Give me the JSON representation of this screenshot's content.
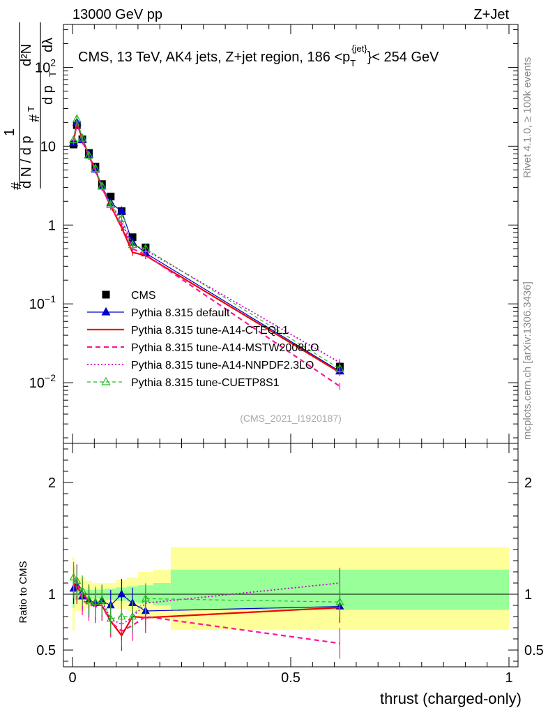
{
  "header": {
    "left": "13000 GeV pp",
    "right": "Z+Jet"
  },
  "side_text": {
    "rivet": "Rivet 4.1.0, ≥ 100k events",
    "mcplots": "mcplots.cern.ch [arXiv:1306.3436]"
  },
  "chart_data": {
    "type": "line",
    "title": "CMS, 13 TeV, AK4 jets, Z+jet region, 186 <p_T^{jet}< 254 GeV",
    "title_parts": {
      "prefix": "CMS, 13 TeV, AK4 jets, Z+jet region, 186 <p",
      "sub": "T",
      "sup": "{jet}",
      "suffix": "}< 254 GeV"
    },
    "analysis_tag": "(CMS_2021_I1920187)",
    "xlabel": "thrust (charged-only)",
    "ylabel": {
      "lead": "#",
      "one": "1",
      "dn": "d N / d p",
      "t1": "T",
      "hash2": "#",
      "dp": "d p",
      "t2": "T",
      "d2n": "d²N",
      "dl": "dλ"
    },
    "ylabel_ratio": "Ratio to CMS",
    "xlim": [
      0,
      1
    ],
    "ylim": [
      0.0017,
      350
    ],
    "yscale": "log",
    "ratio_ylim": [
      0.35,
      2.35
    ],
    "x_ticks": [
      0,
      0.5,
      1
    ],
    "x_tick_labels": [
      "0",
      "0.5",
      "1"
    ],
    "y_ticks": [
      0.01,
      0.1,
      1,
      10,
      100
    ],
    "y_tick_labels": [
      {
        "base": "10",
        "exp": "−2"
      },
      {
        "base": "10",
        "exp": "−1"
      },
      {
        "base": "1",
        "exp": ""
      },
      {
        "base": "10",
        "exp": ""
      },
      {
        "base": "10",
        "exp": "2"
      }
    ],
    "ratio_ticks": [
      0.5,
      1,
      2
    ],
    "ratio_tick_labels": [
      "0.5",
      "1",
      "2"
    ],
    "bin_edges": [
      0,
      0.005,
      0.015,
      0.03,
      0.045,
      0.06,
      0.075,
      0.1,
      0.125,
      0.15,
      0.185,
      0.225,
      1.0
    ],
    "bin_centers": [
      0.0025,
      0.01,
      0.0225,
      0.0375,
      0.0525,
      0.0675,
      0.0875,
      0.1125,
      0.1375,
      0.1675,
      0.205,
      0.6125
    ],
    "band_yellow": [
      [
        0.67,
        1.33
      ],
      [
        0.85,
        1.15
      ],
      [
        0.85,
        1.15
      ],
      [
        0.88,
        1.12
      ],
      [
        0.9,
        1.1
      ],
      [
        0.9,
        1.1
      ],
      [
        0.9,
        1.1
      ],
      [
        0.87,
        1.13
      ],
      [
        0.85,
        1.15
      ],
      [
        0.8,
        1.2
      ],
      [
        0.78,
        1.22
      ],
      [
        0.68,
        1.42
      ]
    ],
    "band_green": [
      [
        0.88,
        1.12
      ],
      [
        0.95,
        1.05
      ],
      [
        0.95,
        1.05
      ],
      [
        0.96,
        1.04
      ],
      [
        0.96,
        1.04
      ],
      [
        0.96,
        1.04
      ],
      [
        0.95,
        1.05
      ],
      [
        0.94,
        1.06
      ],
      [
        0.93,
        1.07
      ],
      [
        0.92,
        1.08
      ],
      [
        0.9,
        1.1
      ],
      [
        0.86,
        1.22
      ]
    ],
    "series": [
      {
        "name": "CMS",
        "color": "#000000",
        "style": "data",
        "marker": "square",
        "values": [
          10.5,
          18.5,
          12.2,
          8.2,
          5.5,
          3.3,
          2.3,
          1.5,
          0.7,
          0.52,
          null,
          0.016
        ]
      },
      {
        "name": "Pythia 8.315 default",
        "color": "#0000cc",
        "style": "solid",
        "width": 1.2,
        "marker": "triangle",
        "values": [
          11.0,
          20.0,
          12.0,
          7.8,
          5.1,
          3.1,
          1.9,
          1.5,
          0.6,
          0.44,
          null,
          0.014
        ],
        "ratio": [
          1.05,
          1.08,
          0.98,
          0.95,
          0.92,
          0.94,
          0.9,
          1.0,
          0.92,
          0.85,
          null,
          0.89
        ]
      },
      {
        "name": "Pythia 8.315 tune-A14-CTEQL1",
        "color": "#ee0000",
        "style": "solid",
        "width": 2.2,
        "marker": "none",
        "values": [
          11.5,
          19.5,
          12.5,
          7.6,
          5.0,
          3.0,
          1.75,
          0.93,
          0.45,
          0.41,
          null,
          0.0135
        ],
        "ratio": [
          1.1,
          1.05,
          1.02,
          0.93,
          0.91,
          0.9,
          0.76,
          0.63,
          0.8,
          0.79,
          null,
          0.88
        ]
      },
      {
        "name": "Pythia 8.315 tune-A14-MSTW2008LO",
        "color": "#ff1493",
        "style": "dashed",
        "width": 2.2,
        "marker": "none",
        "values": [
          11.6,
          20.5,
          11.6,
          7.4,
          5.0,
          3.0,
          1.7,
          1.0,
          0.5,
          0.42,
          null,
          0.009
        ],
        "ratio": [
          1.11,
          1.12,
          0.95,
          0.9,
          0.9,
          0.9,
          0.75,
          0.67,
          0.72,
          0.8,
          null,
          0.56
        ]
      },
      {
        "name": "Pythia 8.315 tune-A14-NNPDF2.3LO",
        "color": "#cc00cc",
        "style": "dotted",
        "width": 1.8,
        "marker": "none",
        "values": [
          11.8,
          21.0,
          12.2,
          7.7,
          5.1,
          3.1,
          1.8,
          1.1,
          0.55,
          0.48,
          null,
          0.018
        ],
        "ratio": [
          1.12,
          1.13,
          1.0,
          0.93,
          0.88,
          0.94,
          0.78,
          0.73,
          0.79,
          0.92,
          null,
          1.1
        ]
      },
      {
        "name": "Pythia 8.315 tune-CUETP8S1",
        "color": "#22bb22",
        "style": "dashed-thin",
        "width": 1.2,
        "marker": "open-triangle",
        "values": [
          12.0,
          22.0,
          12.6,
          7.6,
          5.2,
          3.1,
          1.8,
          1.2,
          0.56,
          0.5,
          null,
          0.015
        ],
        "ratio": [
          1.15,
          1.12,
          1.03,
          0.95,
          0.93,
          0.95,
          0.78,
          0.8,
          0.8,
          0.96,
          null,
          0.93
        ]
      }
    ]
  }
}
